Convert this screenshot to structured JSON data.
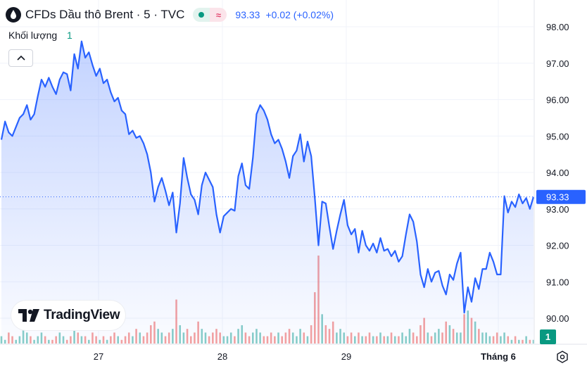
{
  "header": {
    "title": "CFDs Dầu thô Brent · 5 · TVC",
    "last_price": "93.33",
    "change": "+0.02 (+0.02%)",
    "market_status_icon": "market-open-dot-icon",
    "session_icon": "approx-wave-icon"
  },
  "volume_legend": {
    "label": "Khối lượng",
    "value": "1"
  },
  "branding": {
    "logo_text": "TradingView"
  },
  "price_axis": {
    "current_label": "93.33",
    "volume_badge": "1"
  },
  "colors": {
    "line": "#2962ff",
    "area_top": "#2962ff",
    "up_volume": "#26a69a",
    "down_volume": "#ef5350",
    "grid": "#f0f3fa",
    "price_label_bg": "#2962ff"
  },
  "chart_data": {
    "type": "area",
    "title": "CFDs Dầu thô Brent · 5 · TVC",
    "ylim": [
      89.6,
      98.25
    ],
    "y_ticks": [
      90.0,
      91.0,
      92.0,
      93.0,
      94.0,
      95.0,
      96.0,
      97.0,
      98.0
    ],
    "x_tick_labels": [
      "27",
      "28",
      "29",
      "Tháng 6"
    ],
    "grid": true,
    "last_value": 93.33,
    "series": [
      {
        "values": [
          94.9,
          95.4,
          95.1,
          95.0,
          95.25,
          95.5,
          95.6,
          95.85,
          95.45,
          95.6,
          96.1,
          96.55,
          96.35,
          96.6,
          96.35,
          96.15,
          96.55,
          96.75,
          96.7,
          96.25,
          97.25,
          96.85,
          97.6,
          97.15,
          97.3,
          96.95,
          96.65,
          96.85,
          96.45,
          96.55,
          96.2,
          95.95,
          96.05,
          95.7,
          95.6,
          95.05,
          95.15,
          94.95,
          95.0,
          94.8,
          94.5,
          94.0,
          93.2,
          93.6,
          93.85,
          93.5,
          93.1,
          93.45,
          92.35,
          93.15,
          94.4,
          93.85,
          93.4,
          93.25,
          92.85,
          93.65,
          94.0,
          93.8,
          93.6,
          92.85,
          92.35,
          92.8,
          92.9,
          93.0,
          92.95,
          93.9,
          94.25,
          93.65,
          93.55,
          94.4,
          95.6,
          95.85,
          95.7,
          95.45,
          95.05,
          94.8,
          94.9,
          94.65,
          94.3,
          93.85,
          94.45,
          94.6,
          95.05,
          94.3,
          94.85,
          94.45,
          93.3,
          92.0,
          93.2,
          93.15,
          92.5,
          91.9,
          92.4,
          92.85,
          93.25,
          92.55,
          92.3,
          92.45,
          91.8,
          92.4,
          92.0,
          91.85,
          92.05,
          91.8,
          92.2,
          91.85,
          91.9,
          91.7,
          91.85,
          91.55,
          91.7,
          92.3,
          92.85,
          92.65,
          92.1,
          91.2,
          90.85,
          91.35,
          91.0,
          91.25,
          91.3,
          90.9,
          90.65,
          91.2,
          91.05,
          91.5,
          91.8,
          90.15,
          90.85,
          90.45,
          91.1,
          90.8,
          91.35,
          91.35,
          91.8,
          91.55,
          91.2,
          91.2,
          93.35,
          92.9,
          93.2,
          93.05,
          93.4,
          93.15,
          93.3,
          93.0,
          93.33
        ]
      }
    ],
    "volume": [
      2,
      1,
      3,
      2,
      1,
      2,
      4,
      3,
      2,
      1,
      2,
      3,
      2,
      1,
      1,
      2,
      3,
      2,
      1,
      2,
      4,
      3,
      2,
      2,
      1,
      3,
      2,
      1,
      2,
      1,
      2,
      3,
      2,
      1,
      2,
      3,
      2,
      4,
      3,
      2,
      3,
      5,
      6,
      4,
      3,
      2,
      3,
      4,
      12,
      5,
      3,
      4,
      2,
      3,
      6,
      4,
      3,
      2,
      3,
      4,
      3,
      2,
      2,
      3,
      2,
      4,
      5,
      3,
      2,
      3,
      4,
      3,
      2,
      2,
      3,
      2,
      3,
      2,
      3,
      4,
      3,
      2,
      4,
      3,
      2,
      5,
      14,
      24,
      8,
      5,
      4,
      6,
      3,
      4,
      3,
      2,
      3,
      2,
      3,
      2,
      2,
      3,
      2,
      2,
      3,
      2,
      2,
      3,
      2,
      2,
      3,
      2,
      4,
      3,
      2,
      5,
      7,
      3,
      2,
      3,
      4,
      3,
      6,
      5,
      4,
      3,
      3,
      8,
      9,
      7,
      6,
      4,
      3,
      3,
      2,
      2,
      3,
      2,
      3,
      2,
      1,
      2,
      1,
      1,
      2,
      1,
      1
    ]
  }
}
